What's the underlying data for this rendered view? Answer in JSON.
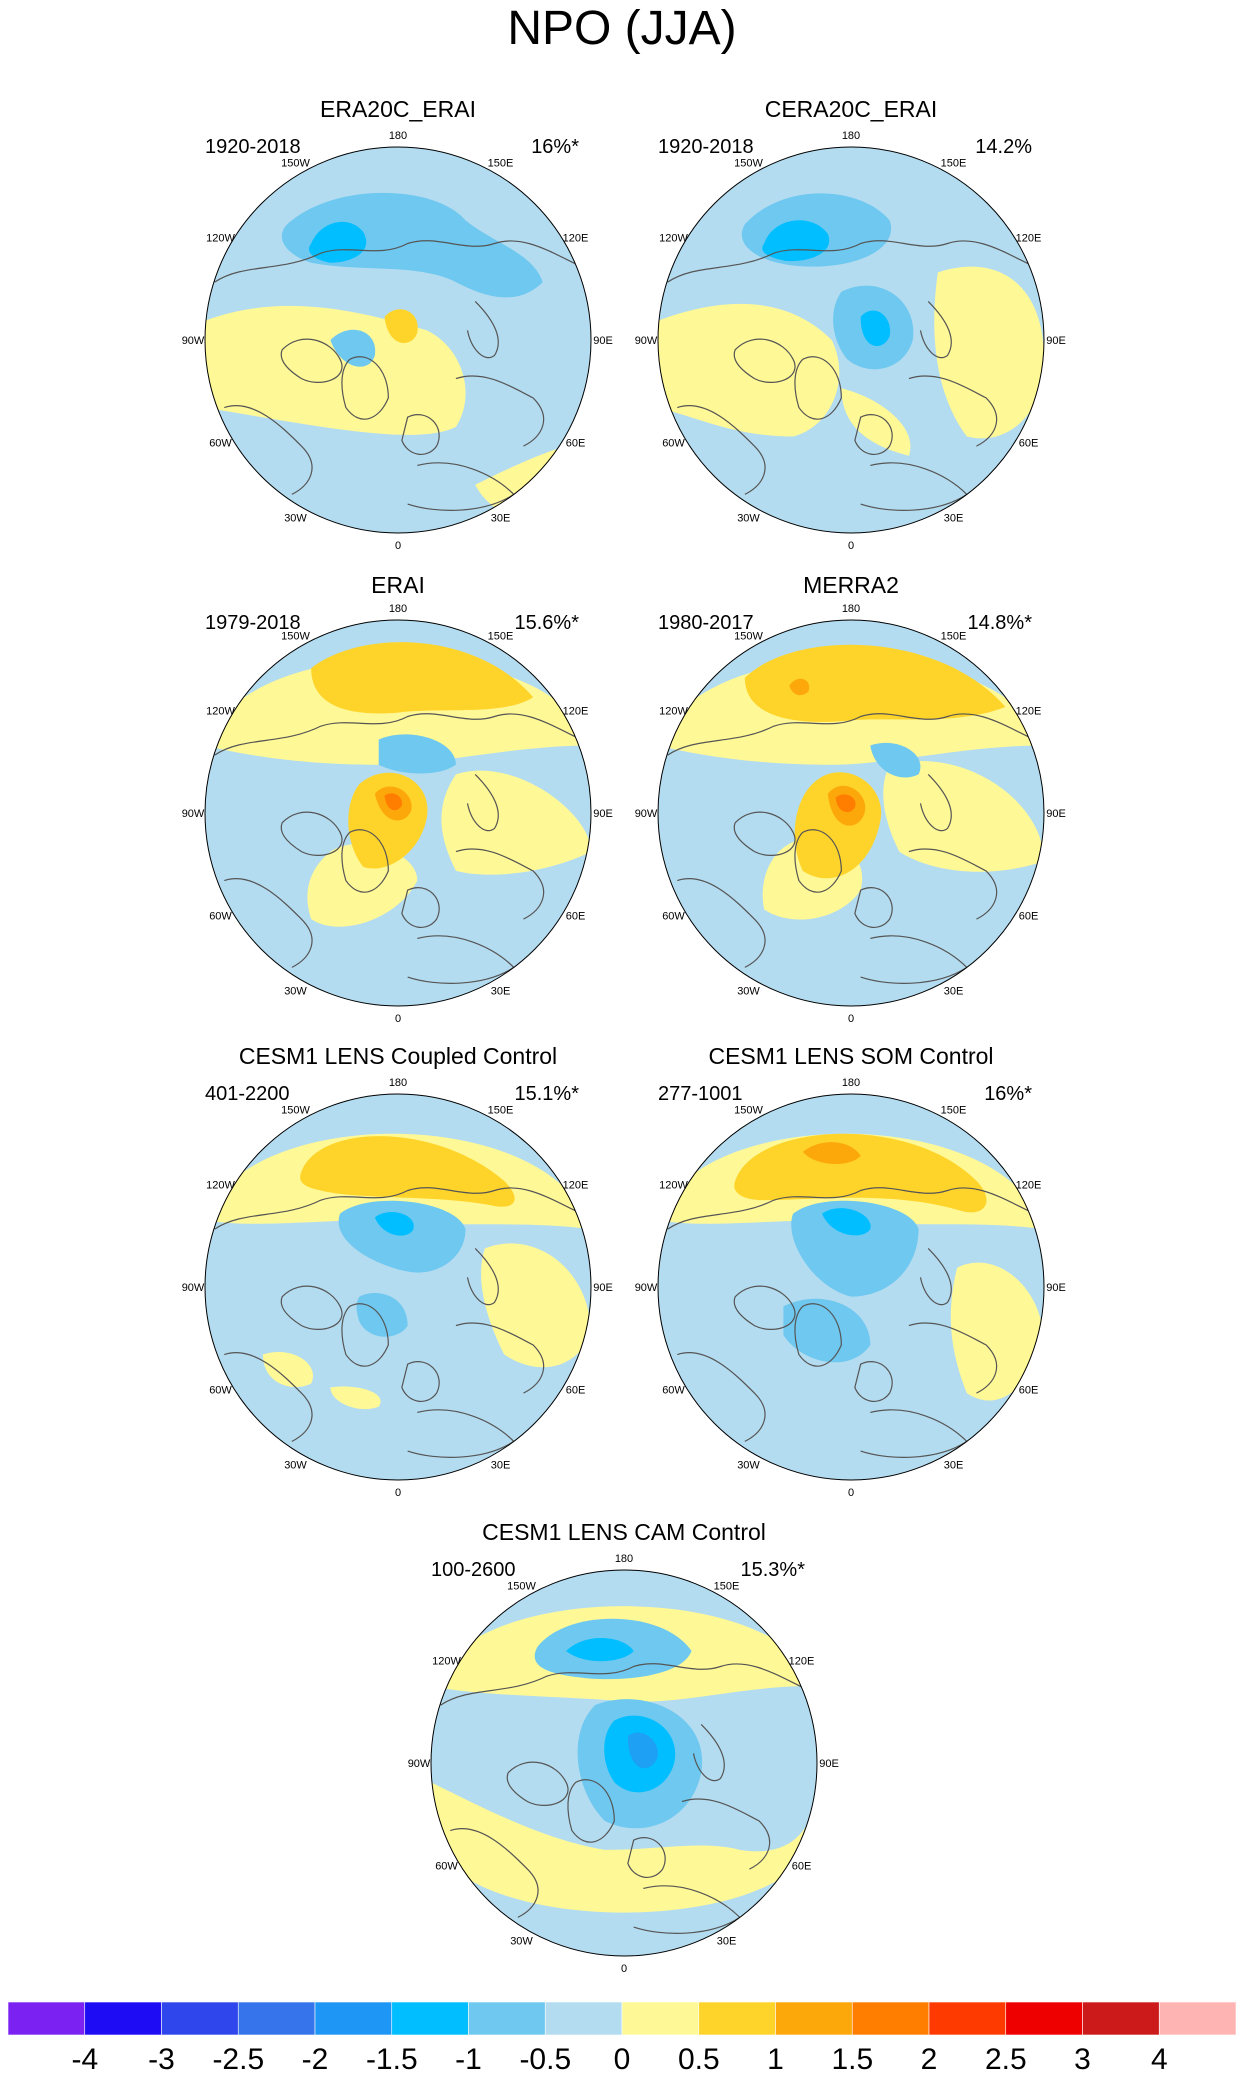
{
  "figure": {
    "title": "NPO (JJA)"
  },
  "colors": {
    "neg_strong": "#1ea0f5",
    "neg_mid": "#00beff",
    "neg_light": "#6ec8f0",
    "neg_weak": "#b4dcf0",
    "pos_weak": "#fff896",
    "pos_light": "#ffd42a",
    "pos_mid": "#fda80a",
    "pos_strong": "#ff7e00",
    "land_outline": "#555555"
  },
  "panels": [
    {
      "name": "ERA20C_ERAI",
      "years": "1920-2018",
      "variance": "16%*",
      "longitude_labels": [
        "180",
        "150E",
        "120E",
        "90E",
        "60E",
        "30E",
        "0",
        "30W",
        "60W",
        "90W",
        "120W",
        "150W"
      ]
    },
    {
      "name": "CERA20C_ERAI",
      "years": "1920-2018",
      "variance": "14.2%",
      "longitude_labels": [
        "180",
        "150E",
        "120E",
        "90E",
        "60E",
        "30E",
        "0",
        "30W",
        "60W",
        "90W",
        "120W",
        "150W"
      ]
    },
    {
      "name": "ERAI",
      "years": "1979-2018",
      "variance": "15.6%*",
      "longitude_labels": [
        "180",
        "150E",
        "120E",
        "90E",
        "60E",
        "30E",
        "0",
        "30W",
        "60W",
        "90W",
        "120W",
        "150W"
      ]
    },
    {
      "name": "MERRA2",
      "years": "1980-2017",
      "variance": "14.8%*",
      "longitude_labels": [
        "180",
        "150E",
        "120E",
        "90E",
        "60E",
        "30E",
        "0",
        "30W",
        "60W",
        "90W",
        "120W",
        "150W"
      ]
    },
    {
      "name": "CESM1 LENS Coupled Control",
      "years": "401-2200",
      "variance": "15.1%*",
      "longitude_labels": [
        "180",
        "150E",
        "120E",
        "90E",
        "60E",
        "30E",
        "0",
        "30W",
        "60W",
        "90W",
        "120W",
        "150W"
      ]
    },
    {
      "name": "CESM1 LENS SOM Control",
      "years": "277-1001",
      "variance": "16%*",
      "longitude_labels": [
        "180",
        "150E",
        "120E",
        "90E",
        "60E",
        "30E",
        "0",
        "30W",
        "60W",
        "90W",
        "120W",
        "150W"
      ]
    },
    {
      "name": "CESM1 LENS CAM Control",
      "years": "100-2600",
      "variance": "15.3%*",
      "longitude_labels": [
        "180",
        "150E",
        "120E",
        "90E",
        "60E",
        "30E",
        "0",
        "30W",
        "60W",
        "90W",
        "120W",
        "150W"
      ]
    }
  ],
  "colorbar": {
    "labels": [
      "-4",
      "-3",
      "-2.5",
      "-2",
      "-1.5",
      "-1",
      "-0.5",
      "0",
      "0.5",
      "1",
      "1.5",
      "2",
      "2.5",
      "3",
      "4"
    ],
    "colors": [
      "#7b22f2",
      "#1e0cf5",
      "#2e46eb",
      "#3574ea",
      "#1e96f5",
      "#00beff",
      "#6ec8f0",
      "#b4dcf0",
      "#fff896",
      "#ffd42a",
      "#fda80a",
      "#ff7e00",
      "#ff3a00",
      "#ee0000",
      "#cc1a1a",
      "#ffb4b4"
    ]
  }
}
